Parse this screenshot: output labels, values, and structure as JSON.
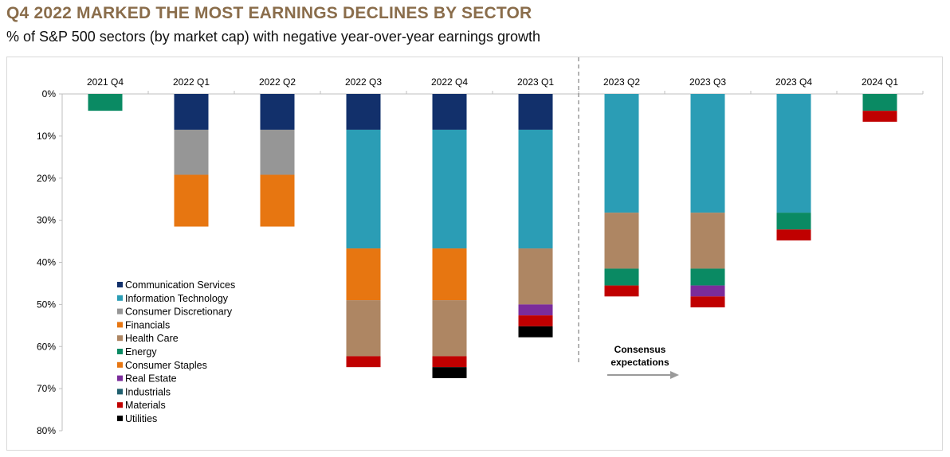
{
  "title": "Q4 2022 MARKED THE MOST EARNINGS DECLINES BY SECTOR",
  "subtitle": "% of S&P 500 sectors (by market cap) with negative year-over-year earnings growth",
  "chart_data": {
    "type": "bar",
    "stacked": true,
    "categories": [
      "2021 Q4",
      "2022 Q1",
      "2022 Q2",
      "2022 Q3",
      "2022 Q4",
      "2023 Q1",
      "2023 Q2",
      "2023 Q3",
      "2023 Q4",
      "2024 Q1"
    ],
    "y_axis": {
      "min": 0,
      "max": 80,
      "step": 10,
      "inverted": true,
      "tick_labels": [
        "0%",
        "10%",
        "20%",
        "30%",
        "40%",
        "50%",
        "60%",
        "70%",
        "80%"
      ]
    },
    "grid": false,
    "legend_position": "inside-left",
    "series": [
      {
        "name": "Communication Services",
        "color": "#12306b",
        "values": [
          0,
          8.5,
          8.5,
          8.5,
          8.5,
          8.5,
          0,
          0,
          0,
          0
        ]
      },
      {
        "name": "Information Technology",
        "color": "#2b9db5",
        "values": [
          0,
          0,
          0,
          28.2,
          28.2,
          28.2,
          28.2,
          28.2,
          28.2,
          0
        ]
      },
      {
        "name": "Consumer Discretionary",
        "color": "#969696",
        "values": [
          0,
          10.7,
          10.7,
          0,
          0,
          0,
          0,
          0,
          0,
          0
        ]
      },
      {
        "name": "Financials",
        "color": "#e77611",
        "values": [
          0,
          12.3,
          12.3,
          12.3,
          12.3,
          0,
          0,
          0,
          0,
          0
        ]
      },
      {
        "name": "Health Care",
        "color": "#ae8663",
        "values": [
          0,
          0,
          0,
          13.3,
          13.3,
          13.3,
          13.3,
          13.3,
          0,
          0
        ]
      },
      {
        "name": "Energy",
        "color": "#0a8a63",
        "values": [
          4.0,
          0,
          0,
          0,
          0,
          0,
          4.0,
          4.0,
          4.0,
          4.0
        ]
      },
      {
        "name": "Consumer Staples",
        "color": "#e77611",
        "values": [
          0,
          0,
          0,
          0,
          0,
          0,
          0,
          0,
          0,
          0
        ]
      },
      {
        "name": "Real Estate",
        "color": "#7b2c9b",
        "values": [
          0,
          0,
          0,
          0,
          0,
          2.6,
          0,
          2.6,
          0,
          0
        ]
      },
      {
        "name": "Industrials",
        "color": "#1f5f6e",
        "values": [
          0,
          0,
          0,
          0,
          0,
          0,
          0,
          0,
          0,
          0
        ]
      },
      {
        "name": "Materials",
        "color": "#c00000",
        "values": [
          0,
          0,
          0,
          2.6,
          2.6,
          2.6,
          2.6,
          2.6,
          2.6,
          2.6
        ]
      },
      {
        "name": "Utilities",
        "color": "#000000",
        "values": [
          0,
          0,
          0,
          0,
          2.6,
          2.6,
          0,
          0,
          0,
          0
        ]
      }
    ],
    "divider_after_category": "2023 Q1",
    "annotation": {
      "text_lines": [
        "Consensus",
        "expectations"
      ],
      "arrow": "right"
    }
  }
}
